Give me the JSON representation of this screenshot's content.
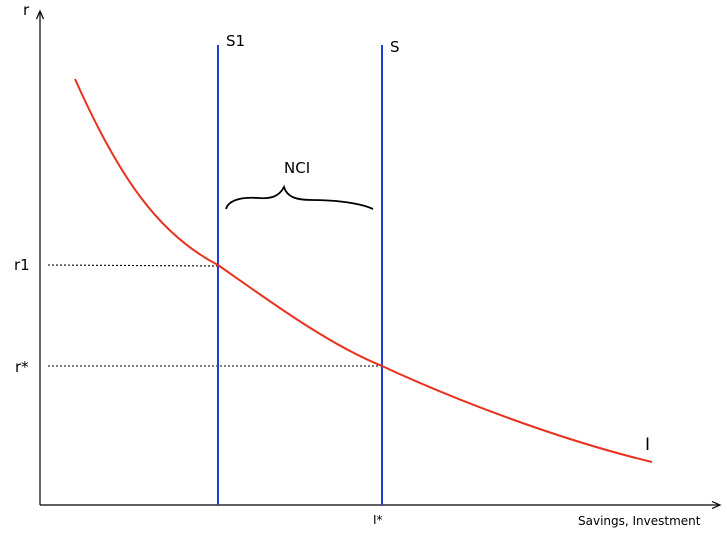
{
  "diagram": {
    "labels": {
      "y_axis": "r",
      "x_axis": "Savings, Investment",
      "s1_curve": "S1",
      "s_curve": "S",
      "i_curve": "I",
      "nci": "NCI",
      "r1": "r1",
      "r_star": "r*",
      "i_star": "I*"
    },
    "colors": {
      "supply_lines": "#1f3fd6",
      "investment_curve": "#e8321e",
      "axes": "#000000",
      "guides": "#000000"
    }
  }
}
